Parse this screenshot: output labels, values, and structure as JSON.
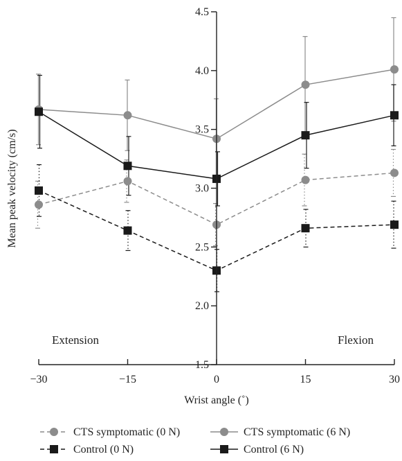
{
  "chart_data": {
    "type": "line",
    "title": "",
    "xlabel": "Wrist angle (˚)",
    "ylabel": "Mean peak velocity (cm/s)",
    "x": [
      -30,
      -15,
      0,
      15,
      30
    ],
    "x_tick_labels": [
      "−30",
      "−15",
      "0",
      "15",
      "30"
    ],
    "xlim": [
      -30,
      30
    ],
    "ylim": [
      1.5,
      4.5
    ],
    "y_ticks": [
      1.5,
      2.0,
      2.5,
      3.0,
      3.5,
      4.0,
      4.5
    ],
    "y_tick_labels": [
      "1.5",
      "2.0",
      "2.5",
      "3.0",
      "3.5",
      "4.0",
      "4.5"
    ],
    "grid": false,
    "legend_position": "bottom",
    "region_labels": [
      "Extension",
      "Flexion"
    ],
    "series": [
      {
        "name": "CTS symptomatic (0 N)",
        "values": [
          2.86,
          3.06,
          2.69,
          3.07,
          3.13
        ],
        "error": [
          0.2,
          0.18,
          0.18,
          0.22,
          0.2
        ],
        "color": "#8c8c8c",
        "line": "dashed",
        "marker": "circle"
      },
      {
        "name": "CTS symptomatic (6 N)",
        "values": [
          3.67,
          3.62,
          3.42,
          3.88,
          4.01
        ],
        "error": [
          0.3,
          0.3,
          0.34,
          0.41,
          0.44
        ],
        "color": "#8c8c8c",
        "line": "solid",
        "marker": "circle"
      },
      {
        "name": "Control (0 N)",
        "values": [
          2.98,
          2.64,
          2.3,
          2.66,
          2.69
        ],
        "error": [
          0.22,
          0.17,
          0.18,
          0.16,
          0.2
        ],
        "color": "#1a1a1a",
        "line": "dashed",
        "marker": "square"
      },
      {
        "name": "Control (6 N)",
        "values": [
          3.65,
          3.19,
          3.08,
          3.45,
          3.62
        ],
        "error": [
          0.31,
          0.25,
          0.23,
          0.28,
          0.26
        ],
        "color": "#1a1a1a",
        "line": "solid",
        "marker": "square"
      }
    ]
  }
}
